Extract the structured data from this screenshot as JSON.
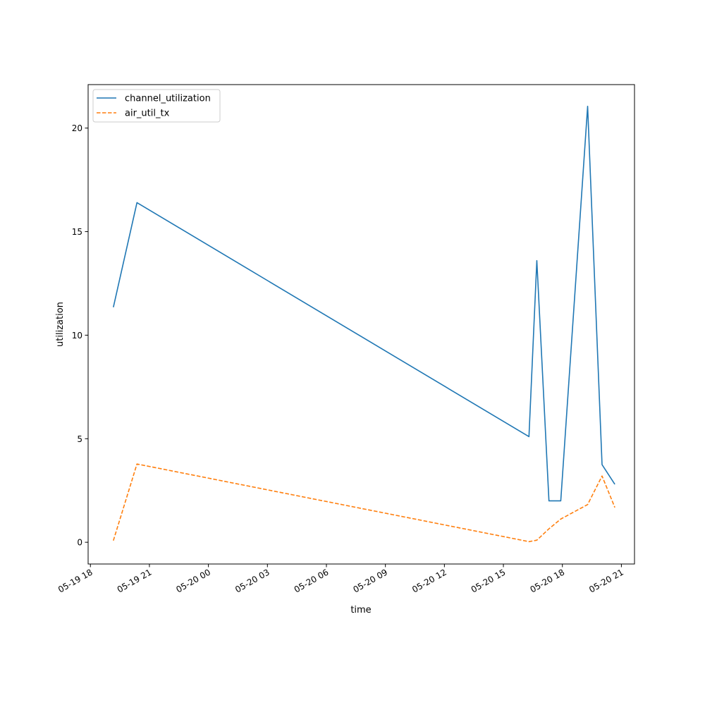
{
  "chart_data": {
    "type": "line",
    "xlabel": "time",
    "ylabel": "utilization",
    "x_tick_labels": [
      "05-19 18",
      "05-19 21",
      "05-20 00",
      "05-20 03",
      "05-20 06",
      "05-20 09",
      "05-20 12",
      "05-20 15",
      "05-20 18",
      "05-20 21"
    ],
    "x_ticks": [
      "2024-05-19T18:00",
      "2024-05-19T21:00",
      "2024-05-20T00:00",
      "2024-05-20T03:00",
      "2024-05-20T06:00",
      "2024-05-20T09:00",
      "2024-05-20T12:00",
      "2024-05-20T15:00",
      "2024-05-20T18:00",
      "2024-05-20T21:00"
    ],
    "xlim": [
      "2024-05-19T17:53",
      "2024-05-20T21:40"
    ],
    "y_ticks": [
      0,
      5,
      10,
      15,
      20
    ],
    "y_tick_labels": [
      "0",
      "5",
      "10",
      "15",
      "20"
    ],
    "ylim": [
      -1.05,
      22.1
    ],
    "grid": false,
    "legend_position": "upper-left",
    "series": [
      {
        "name": "channel_utilization",
        "color": "#1f77b4",
        "dash": "solid",
        "x": [
          "2024-05-19T19:10",
          "2024-05-19T20:22",
          "2024-05-20T16:18",
          "2024-05-20T16:42",
          "2024-05-20T17:19",
          "2024-05-20T17:55",
          "2024-05-20T19:17",
          "2024-05-20T20:01",
          "2024-05-20T20:40"
        ],
        "y": [
          11.35,
          16.4,
          5.1,
          13.6,
          2.0,
          2.0,
          21.05,
          3.75,
          2.8
        ]
      },
      {
        "name": "air_util_tx",
        "color": "#ff7f0e",
        "dash": "dashed",
        "x": [
          "2024-05-19T19:10",
          "2024-05-19T20:22",
          "2024-05-20T16:18",
          "2024-05-20T16:42",
          "2024-05-20T17:19",
          "2024-05-20T17:55",
          "2024-05-20T19:17",
          "2024-05-20T20:01",
          "2024-05-20T20:40"
        ],
        "y": [
          0.08,
          3.78,
          0.03,
          0.1,
          0.65,
          1.12,
          1.82,
          3.2,
          1.68
        ]
      }
    ]
  }
}
